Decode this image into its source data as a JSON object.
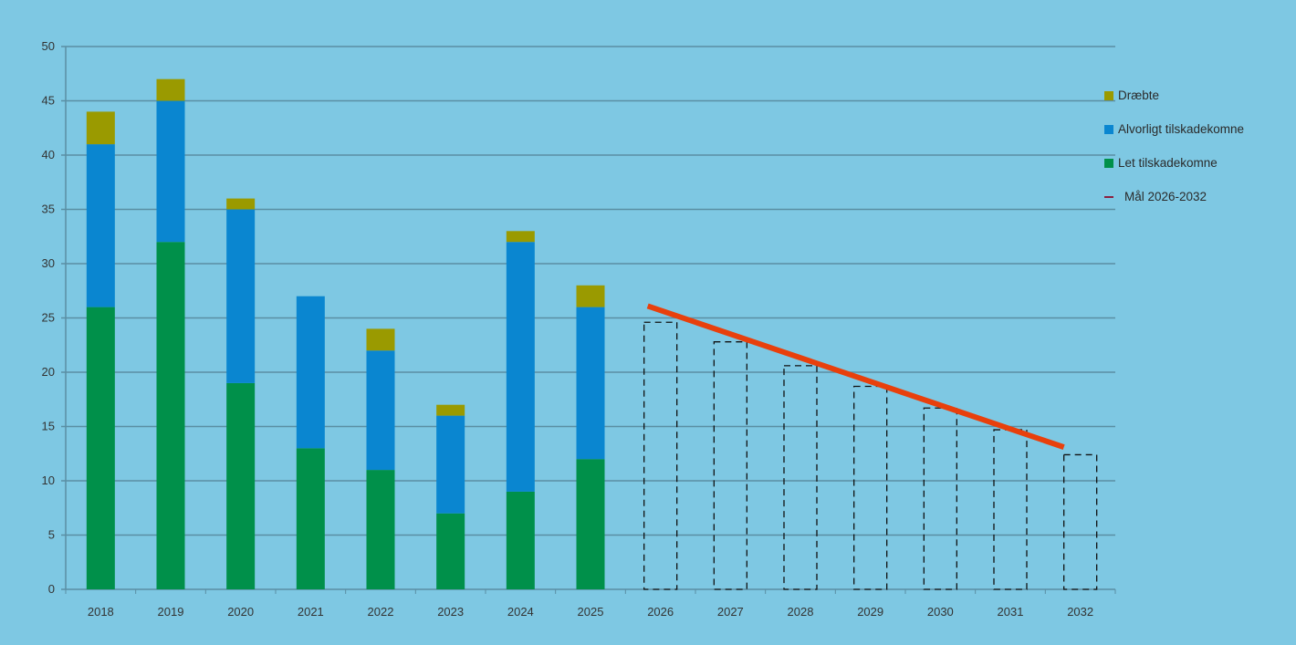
{
  "chart_data": {
    "type": "bar",
    "stacked": true,
    "title": "",
    "xlabel": "",
    "ylabel": "",
    "ylim": [
      0,
      50
    ],
    "yticks": [
      0,
      5,
      10,
      15,
      20,
      25,
      30,
      35,
      40,
      45,
      50
    ],
    "grid": true,
    "legend_position": "right",
    "categories": [
      "2018",
      "2019",
      "2020",
      "2021",
      "2022",
      "2023",
      "2024",
      "2025",
      "2026",
      "2027",
      "2028",
      "2029",
      "2030",
      "2031",
      "2032"
    ],
    "series": [
      {
        "name": "Let tilskadekomne",
        "color": "#00904a",
        "values": [
          26,
          32,
          19,
          13,
          11,
          7,
          9,
          12,
          null,
          null,
          null,
          null,
          null,
          null,
          null
        ]
      },
      {
        "name": "Alvorligt tilskadekomne",
        "color": "#0a86d0",
        "values": [
          15,
          13,
          16,
          14,
          11,
          9,
          23,
          14,
          null,
          null,
          null,
          null,
          null,
          null,
          null
        ]
      },
      {
        "name": "Dræbte",
        "color": "#9a9a00",
        "values": [
          3,
          2,
          1,
          0,
          2,
          1,
          1,
          2,
          null,
          null,
          null,
          null,
          null,
          null,
          null
        ]
      }
    ],
    "targets_dashed": {
      "name": "Target boxes",
      "categories": [
        "2026",
        "2027",
        "2028",
        "2029",
        "2030",
        "2031",
        "2032"
      ],
      "values": [
        24.6,
        22.8,
        20.6,
        18.7,
        16.7,
        14.7,
        12.4
      ]
    },
    "target_line": {
      "name": "Mål 2026-2032",
      "color": "#e8400c",
      "start": {
        "x": "2026",
        "y": 26.1
      },
      "end": {
        "x": "2032",
        "y": 13.1
      }
    }
  },
  "legend": [
    {
      "label": "Dræbte",
      "color": "#9a9a00",
      "kind": "box"
    },
    {
      "label": "Alvorligt tilskadekomne",
      "color": "#0a86d0",
      "kind": "box"
    },
    {
      "label": "Let tilskadekomne",
      "color": "#00904a",
      "kind": "box"
    },
    {
      "label": "Mål 2026-2032",
      "color": "#8b2040",
      "kind": "line"
    }
  ]
}
